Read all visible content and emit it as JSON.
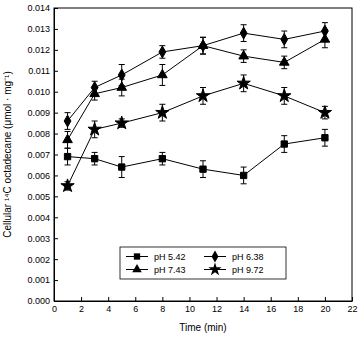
{
  "chart_data": {
    "type": "line",
    "x_label": "Time (min)",
    "y_label": "Cellular ¹⁴C octadecane (μmol · mg⁻¹)",
    "x": [
      1,
      3,
      5,
      8,
      11,
      14,
      17,
      20
    ],
    "series": [
      {
        "name": "pH 5.42",
        "color": "#000000",
        "marker": "square",
        "line_style": "solid",
        "values": [
          0.0069,
          0.0068,
          0.0064,
          0.0068,
          0.0063,
          0.006,
          0.0075,
          0.0078
        ],
        "errors": [
          0.0004,
          0.0003,
          0.0005,
          0.0003,
          0.0004,
          0.0004,
          0.0004,
          0.0004
        ]
      },
      {
        "name": "pH 6.38",
        "color": "#000000",
        "marker": "diamond",
        "line_style": "solid",
        "values": [
          0.0086,
          0.0102,
          0.0108,
          0.0119,
          0.0122,
          0.0128,
          0.0125,
          0.0129
        ],
        "errors": [
          0.0004,
          0.0003,
          0.0005,
          0.0003,
          0.0004,
          0.0004,
          0.0004,
          0.0004
        ]
      },
      {
        "name": "pH 7.43",
        "color": "#000000",
        "marker": "triangle",
        "line_style": "solid",
        "values": [
          0.0077,
          0.0099,
          0.0102,
          0.0108,
          0.0122,
          0.0117,
          0.0114,
          0.0125
        ],
        "errors": [
          0.0004,
          0.0003,
          0.0004,
          0.0005,
          0.0004,
          0.0003,
          0.0003,
          0.0004
        ]
      },
      {
        "name": "pH 9.72",
        "color": "#000000",
        "marker": "star",
        "line_style": "solid",
        "values": [
          0.0055,
          0.0082,
          0.0085,
          0.009,
          0.0098,
          0.0104,
          0.0098,
          0.009
        ],
        "errors": [
          0.0002,
          0.0004,
          0.0002,
          0.0004,
          0.0004,
          0.0004,
          0.0004,
          0.0003
        ]
      }
    ],
    "xlim": [
      0,
      22
    ],
    "xticks": [
      0,
      2,
      4,
      6,
      8,
      10,
      12,
      14,
      16,
      18,
      20,
      22
    ],
    "ylim": [
      0,
      0.014
    ],
    "yticks": [
      {
        "value": 0,
        "label": "0.000"
      },
      {
        "value": 0.001,
        "label": "0.001"
      },
      {
        "value": 0.002,
        "label": "0.002"
      },
      {
        "value": 0.003,
        "label": "0.003"
      },
      {
        "value": 0.004,
        "label": "0.004"
      },
      {
        "value": 0.005,
        "label": "0.005"
      },
      {
        "value": 0.006,
        "label": "0.006"
      },
      {
        "value": 0.007,
        "label": "0.007"
      },
      {
        "value": 0.008,
        "label": "0.008"
      },
      {
        "value": 0.009,
        "label": "0.009"
      },
      {
        "value": 0.01,
        "label": "0.010"
      },
      {
        "value": 0.011,
        "label": "0.011"
      },
      {
        "value": 0.012,
        "label": "0.012"
      },
      {
        "value": 0.013,
        "label": "0.013"
      },
      {
        "value": 0.014,
        "label": "0.014"
      }
    ],
    "grid": false,
    "legend": "bottom"
  }
}
